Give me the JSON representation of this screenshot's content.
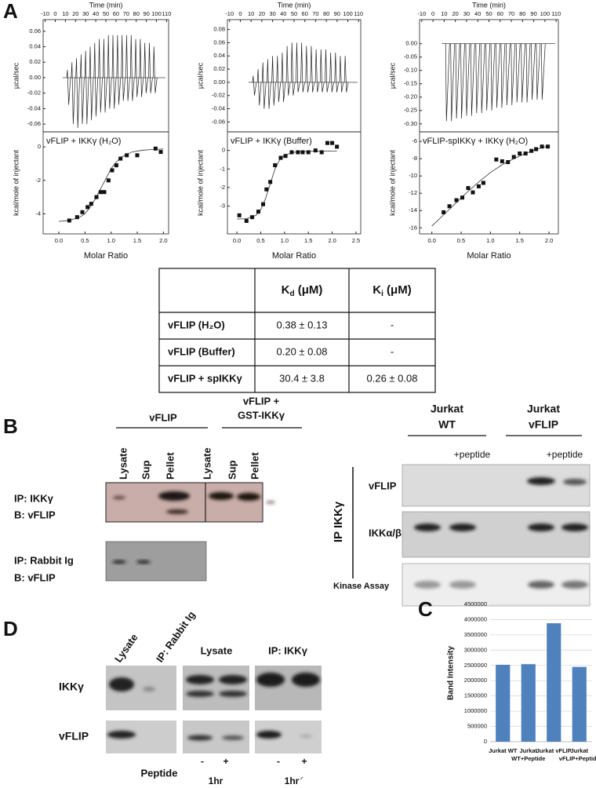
{
  "panel_labels": [
    "A",
    "B",
    "C",
    "D"
  ],
  "chart_data": [
    {
      "type": "thermogram",
      "x_label": "Time (min)",
      "y_label": "µcal/sec",
      "x": [
        12,
        16.5,
        21,
        25.5,
        30,
        34.5,
        39,
        43.5,
        48,
        52.5,
        57,
        61.5,
        66,
        70.5,
        75,
        79.5,
        84,
        88.5,
        93,
        97.5
      ],
      "series": [
        {
          "color": "#222",
          "values": [
            0.01,
            0.02,
            0.025,
            0.03,
            0.035,
            0.04,
            0.045,
            0.05,
            0.05,
            0.055,
            0.055,
            0.055,
            0.055,
            0.055,
            0.055,
            0.05,
            0.05,
            0.045,
            0.045,
            0.04
          ]
        },
        {
          "color": "#222",
          "values": [
            -0.035,
            -0.06,
            -0.065,
            -0.06,
            -0.06,
            -0.055,
            -0.05,
            -0.045,
            -0.045,
            -0.04,
            -0.04,
            -0.035,
            -0.03,
            -0.03,
            -0.03,
            -0.025,
            -0.025,
            -0.02,
            -0.02,
            -0.02
          ]
        }
      ],
      "xlim": [
        -12,
        112
      ],
      "xticks": [
        -10,
        0,
        10,
        20,
        30,
        40,
        50,
        60,
        70,
        80,
        90,
        100,
        110
      ],
      "ylim": [
        -0.07,
        0.075
      ],
      "yticks": [
        -0.06,
        -0.04,
        -0.02,
        {
          "value": 0,
          "label": "0.00"
        },
        0.02,
        0.04,
        0.06
      ]
    },
    {
      "type": "thermogram",
      "x_label": "Time (min)",
      "y_label": "µcal/sec",
      "x": [
        12,
        16.5,
        21,
        25.5,
        30,
        34.5,
        39,
        43.5,
        48,
        52.5,
        57,
        61.5,
        66,
        70.5,
        75,
        79.5,
        84,
        88.5,
        93,
        97.5
      ],
      "series": [
        {
          "color": "#222",
          "values": [
            0.01,
            0.02,
            0.03,
            0.035,
            0.04,
            0.04,
            0.045,
            0.055,
            0.06,
            0.06,
            0.06,
            0.055,
            0.055,
            0.05,
            0.05,
            0.05,
            0.045,
            0.045,
            0.04,
            0.04
          ]
        },
        {
          "color": "#222",
          "values": [
            -0.02,
            -0.035,
            -0.04,
            -0.04,
            -0.035,
            -0.03,
            -0.03,
            -0.02,
            -0.02,
            -0.015,
            -0.015,
            -0.015,
            -0.015,
            -0.015,
            -0.015,
            -0.015,
            -0.015,
            -0.015,
            -0.015,
            -0.015
          ]
        }
      ],
      "xlim": [
        -12,
        112
      ],
      "xticks": [
        -10,
        0,
        10,
        20,
        30,
        40,
        50,
        60,
        70,
        80,
        90,
        100,
        110
      ],
      "ylim": [
        -0.075,
        0.095
      ],
      "yticks": [
        -0.06,
        -0.04,
        -0.02,
        {
          "value": 0,
          "label": "0.00"
        },
        0.02,
        0.04,
        0.06,
        0.08
      ]
    },
    {
      "type": "thermogram",
      "x_label": "Time (min)",
      "y_label": "µcal/sec",
      "x": [
        12,
        16.5,
        21,
        25.5,
        30,
        34.5,
        39,
        43.5,
        48,
        52.5,
        57,
        61.5,
        66,
        70.5,
        75,
        79.5,
        84,
        88.5,
        93,
        97.5
      ],
      "series": [
        {
          "color": "#222",
          "values": [
            -0.29,
            -0.29,
            -0.28,
            -0.28,
            -0.27,
            -0.27,
            -0.26,
            -0.26,
            -0.25,
            -0.25,
            -0.24,
            -0.24,
            -0.23,
            -0.23,
            -0.22,
            -0.22,
            -0.22,
            -0.21,
            -0.21,
            -0.21
          ]
        }
      ],
      "xlim": [
        -12,
        112
      ],
      "xticks": [
        -10,
        0,
        10,
        20,
        30,
        40,
        50,
        60,
        70,
        80,
        90,
        100,
        110
      ],
      "ylim": [
        -0.33,
        0.09
      ],
      "yticks": [
        {
          "value": 0,
          "label": "0.00"
        },
        -0.05,
        {
          "value": -0.1,
          "label": "-0.10"
        },
        -0.15,
        {
          "value": -0.2,
          "label": "-0.20"
        },
        -0.25,
        {
          "value": -0.3,
          "label": "-0.30"
        }
      ]
    },
    {
      "type": "scatter",
      "title": "vFLIP + IKKγ  (H₂O)",
      "x_label": "Molar Ratio",
      "y_label": "kcal/mole of injectant",
      "x": [
        0.2,
        0.35,
        0.45,
        0.55,
        0.62,
        0.72,
        0.8,
        0.87,
        0.95,
        1.02,
        1.1,
        1.18,
        1.3,
        1.5,
        1.85,
        1.95
      ],
      "values": [
        -4.4,
        -4.2,
        -3.9,
        -3.6,
        -3.4,
        -3.0,
        -2.7,
        -2.7,
        -2.0,
        -1.4,
        -1.1,
        -0.7,
        -0.5,
        -0.5,
        -0.1,
        -0.3
      ],
      "fit": {
        "x": [
          0,
          0.2,
          0.4,
          0.5,
          0.6,
          0.7,
          0.8,
          0.9,
          1.0,
          1.1,
          1.2,
          1.4,
          1.6,
          1.8,
          2.0
        ],
        "values": [
          -4.45,
          -4.4,
          -4.2,
          -4.0,
          -3.6,
          -3.1,
          -2.5,
          -1.9,
          -1.3,
          -0.9,
          -0.6,
          -0.3,
          -0.2,
          -0.15,
          -0.12
        ]
      },
      "xlim": [
        -0.3,
        2.1
      ],
      "xticks": [
        {
          "value": 0,
          "label": "0.0"
        },
        0.5,
        {
          "value": 1,
          "label": "1.0"
        },
        1.5,
        {
          "value": 2,
          "label": "2.0"
        }
      ],
      "ylim": [
        -5.2,
        0.9
      ],
      "yticks": [
        -4,
        -2,
        0
      ]
    },
    {
      "type": "scatter",
      "title": "vFLIP + IKKγ (Buffer)",
      "x_label": "Molar Ratio",
      "y_label": "kcal/mole of injectant",
      "x": [
        0.05,
        0.2,
        0.32,
        0.45,
        0.55,
        0.62,
        0.7,
        0.8,
        0.92,
        1.02,
        1.15,
        1.28,
        1.38,
        1.5,
        1.65,
        1.78,
        1.9,
        2.0,
        2.1
      ],
      "values": [
        -3.5,
        -3.8,
        -3.6,
        -3.3,
        -2.9,
        -2.1,
        -1.7,
        -0.8,
        -0.4,
        -0.3,
        -0.1,
        -0.1,
        -0.1,
        -0.1,
        0,
        -0.1,
        0.4,
        0.4,
        0.2
      ],
      "fit": {
        "x": [
          0,
          0.2,
          0.4,
          0.5,
          0.6,
          0.7,
          0.8,
          0.9,
          1.0,
          1.2,
          1.5,
          2.0,
          2.1
        ],
        "values": [
          -3.7,
          -3.68,
          -3.5,
          -3.2,
          -2.6,
          -1.8,
          -1.0,
          -0.5,
          -0.25,
          -0.1,
          -0.05,
          -0.03,
          -0.03
        ]
      },
      "xlim": [
        -0.2,
        2.6
      ],
      "xticks": [
        {
          "value": 0,
          "label": "0.0"
        },
        0.5,
        {
          "value": 1,
          "label": "1.0"
        },
        1.5,
        {
          "value": 2,
          "label": "2.0"
        },
        2.5
      ],
      "ylim": [
        -4.5,
        1.0
      ],
      "yticks": [
        -3,
        -2,
        -1,
        0
      ]
    },
    {
      "type": "scatter",
      "title": "vFLIP-spIKKγ + IKKγ (H₂O)",
      "x_label": "Molar Ratio",
      "y_label": "kcal/mole of injectant",
      "x": [
        0.2,
        0.3,
        0.42,
        0.52,
        0.62,
        0.7,
        0.8,
        0.88,
        1.1,
        1.2,
        1.3,
        1.4,
        1.5,
        1.6,
        1.7,
        1.78,
        1.88,
        1.98
      ],
      "values": [
        -14.2,
        -13.5,
        -12.8,
        -12.5,
        -11.4,
        -11.9,
        -11.2,
        -10.8,
        -8.1,
        -8.3,
        -8.4,
        -7.8,
        -7.4,
        -7.4,
        -7.1,
        -6.9,
        -6.6,
        -6.6
      ],
      "fit": {
        "x": [
          0,
          0.2,
          0.4,
          0.6,
          0.8,
          1.0,
          1.2,
          1.4,
          1.6,
          1.8,
          2.0
        ],
        "values": [
          -15.8,
          -14.5,
          -13.2,
          -11.9,
          -10.7,
          -9.6,
          -8.7,
          -8.0,
          -7.4,
          -6.9,
          -6.5
        ]
      },
      "xlim": [
        -0.21,
        2.16
      ],
      "xticks": [
        {
          "value": 0,
          "label": "0.0"
        },
        0.5,
        {
          "value": 1,
          "label": "1.0"
        },
        1.5,
        {
          "value": 2,
          "label": "2.0"
        }
      ],
      "ylim": [
        -16.7,
        -4.9
      ],
      "yticks": [
        -16,
        -14,
        -12,
        -10,
        -8,
        -6
      ]
    },
    {
      "type": "bar",
      "y_label": "Band Intensity",
      "color": "#4f81bd",
      "grid": true,
      "categories": [
        [
          "Jurkat WT"
        ],
        [
          "Jurkat",
          "WT+Peptide"
        ],
        [
          "Jurkat vFLIP"
        ],
        [
          "Jurkat",
          "vFLIP+Peptide"
        ]
      ],
      "values": [
        2520000,
        2540000,
        3880000,
        2450000
      ],
      "ylim": [
        0,
        4500000
      ],
      "yticks": [
        0,
        500000,
        1000000,
        1500000,
        2000000,
        2500000,
        3000000,
        3500000,
        4000000,
        4500000
      ]
    }
  ],
  "table": {
    "header": [
      {
        "symbol": "K",
        "subscript": "d",
        "unit": " (μM)"
      },
      {
        "symbol": "K",
        "subscript": "i",
        "unit": " (μM)"
      }
    ],
    "rows": [
      [
        "vFLIP (H₂O)",
        "0.38 ± 0.13",
        "-"
      ],
      [
        "vFLIP (Buffer)",
        "0.20 ± 0.08",
        "-"
      ],
      [
        "vFLIP +  spIKKγ",
        "30.4 ± 3.8",
        "0.26 ± 0.08"
      ]
    ]
  },
  "panel_b": {
    "groups": [
      [
        "vFLIP"
      ],
      [
        "vFLIP +",
        "GST-IKKγ"
      ]
    ],
    "lanes": [
      "Lysate",
      "Sup",
      "Pellet",
      "Lysate",
      "Sup",
      "Pellet"
    ],
    "rows": [
      [
        "IP: IKKγ",
        "B: vFLIP"
      ],
      [
        "IP: Rabbit Ig",
        "B: vFLIP"
      ]
    ],
    "right_groups": [
      [
        "Jurkat",
        "WT"
      ],
      [
        "Jurkat",
        "vFLIP"
      ]
    ],
    "treatments": [
      "+peptide",
      "+peptide"
    ],
    "ip": "IP IKKγ",
    "right_rows": [
      "vFLIP",
      "IKKα/β",
      "Kinase Assay"
    ]
  },
  "panel_d": {
    "columns": [
      "Lysate",
      "IP: Rabbit Ig"
    ],
    "groups": [
      "Lysate",
      "IP: IKKγ"
    ],
    "rows": [
      "IKKγ",
      "vFLIP"
    ],
    "peptide": "Peptide",
    "signs": [
      "-",
      "+",
      "-",
      "+"
    ],
    "times": [
      "1hr",
      "1hr"
    ]
  }
}
